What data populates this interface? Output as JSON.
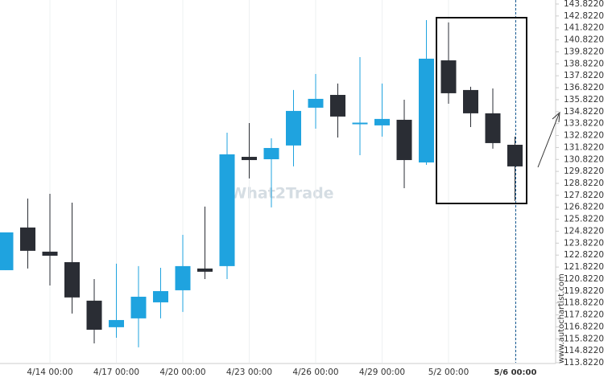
{
  "chart_data": {
    "type": "candlestick",
    "categories": [
      null,
      null,
      "4/14 00:00",
      null,
      null,
      "4/17 00:00",
      null,
      null,
      "4/20 00:00",
      null,
      null,
      "4/23 00:00",
      null,
      null,
      "4/26 00:00",
      null,
      null,
      "4/29 00:00",
      null,
      null,
      "5/2 00:00",
      null,
      null,
      "5/6 00:00"
    ],
    "open": [
      121.56,
      125.13,
      123.11,
      122.23,
      119.01,
      116.79,
      117.53,
      118.87,
      119.88,
      121.7,
      121.9,
      131.04,
      130.84,
      131.99,
      135.15,
      136.22,
      133.84,
      133.67,
      134.14,
      130.57,
      139.11,
      136.63,
      134.68,
      132.05
    ],
    "high": [
      124.72,
      127.55,
      127.95,
      127.21,
      120.82,
      122.1,
      121.9,
      121.76,
      124.52,
      126.88,
      133.06,
      133.87,
      132.59,
      136.63,
      137.97,
      137.17,
      139.38,
      137.17,
      135.82,
      142.48,
      142.28,
      136.9,
      136.76,
      132.73
    ],
    "low": [
      121.56,
      121.7,
      120.28,
      117.93,
      115.44,
      115.91,
      115.11,
      117.53,
      118.07,
      120.82,
      120.82,
      129.23,
      126.81,
      130.24,
      133.4,
      132.66,
      131.18,
      132.73,
      128.42,
      130.37,
      135.48,
      133.53,
      131.72,
      127.35
    ],
    "close": [
      124.72,
      123.18,
      122.77,
      119.28,
      116.58,
      117.39,
      119.34,
      119.81,
      121.9,
      121.43,
      131.25,
      130.77,
      131.78,
      134.88,
      135.89,
      134.41,
      133.9,
      134.21,
      130.77,
      139.25,
      136.36,
      134.68,
      132.19,
      130.24
    ],
    "up_color": "#1fa3df",
    "down_color": "#2a2d34",
    "ylim": [
      113.822,
      143.822
    ],
    "yticks": [
      {
        "value": 113.822,
        "label": "113.8220"
      },
      {
        "value": 114.822,
        "label": "114.8220"
      },
      {
        "value": 115.822,
        "label": "115.8220"
      },
      {
        "value": 116.822,
        "label": "116.8220"
      },
      {
        "value": 117.822,
        "label": "117.8220"
      },
      {
        "value": 118.822,
        "label": "118.8220"
      },
      {
        "value": 119.822,
        "label": "119.8220"
      },
      {
        "value": 120.822,
        "label": "120.8220"
      },
      {
        "value": 121.822,
        "label": "121.8220"
      },
      {
        "value": 122.822,
        "label": "122.8220"
      },
      {
        "value": 123.822,
        "label": "123.8220"
      },
      {
        "value": 124.822,
        "label": "124.8220"
      },
      {
        "value": 125.822,
        "label": "125.8220"
      },
      {
        "value": 126.822,
        "label": "126.8220"
      },
      {
        "value": 127.822,
        "label": "127.8220"
      },
      {
        "value": 128.822,
        "label": "128.8220"
      },
      {
        "value": 129.822,
        "label": "129.8220"
      },
      {
        "value": 130.822,
        "label": "130.8220"
      },
      {
        "value": 131.822,
        "label": "131.8220"
      },
      {
        "value": 132.822,
        "label": "132.8220"
      },
      {
        "value": 133.822,
        "label": "133.8220"
      },
      {
        "value": 134.822,
        "label": "134.8220"
      },
      {
        "value": 135.822,
        "label": "135.8220"
      },
      {
        "value": 136.822,
        "label": "136.8220"
      },
      {
        "value": 137.822,
        "label": "137.8220"
      },
      {
        "value": 138.822,
        "label": "138.8220"
      },
      {
        "value": 139.822,
        "label": "139.8220"
      },
      {
        "value": 140.822,
        "label": "140.8220"
      },
      {
        "value": 141.822,
        "label": "141.8220"
      },
      {
        "value": 142.822,
        "label": "142.8220"
      },
      {
        "value": 143.822,
        "label": "143.8220"
      }
    ],
    "grid": true,
    "watermark": "What2Trade",
    "source": "www.autochartist.com"
  }
}
